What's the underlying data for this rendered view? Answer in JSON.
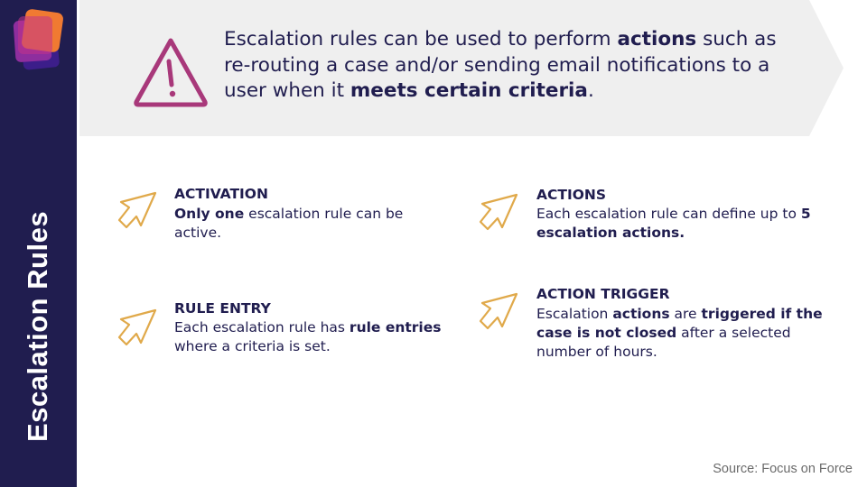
{
  "sidebar": {
    "title": "Escalation Rules"
  },
  "banner": {
    "segments": [
      {
        "text": "Escalation rules can be used to perform ",
        "bold": false
      },
      {
        "text": "actions",
        "bold": true
      },
      {
        "text": " such as re-routing a case and/or sending email notifications to a user when it ",
        "bold": false
      },
      {
        "text": "meets certain criteria",
        "bold": true
      },
      {
        "text": ".",
        "bold": false
      }
    ]
  },
  "items": [
    {
      "title": "ACTIVATION",
      "body": [
        {
          "text": "Only one",
          "bold": true
        },
        {
          "text": " escalation rule can be active.",
          "bold": false
        }
      ]
    },
    {
      "title": "ACTIONS",
      "body": [
        {
          "text": "Each escalation rule can define up to ",
          "bold": false
        },
        {
          "text": "5 escalation actions.",
          "bold": true
        }
      ]
    },
    {
      "title": "RULE ENTRY",
      "body": [
        {
          "text": "Each escalation rule has ",
          "bold": false
        },
        {
          "text": "rule entries",
          "bold": true
        },
        {
          "text": " where a criteria is set.",
          "bold": false
        }
      ]
    },
    {
      "title": "ACTION TRIGGER",
      "body": [
        {
          "text": "Escalation ",
          "bold": false
        },
        {
          "text": "actions",
          "bold": true
        },
        {
          "text": " are ",
          "bold": false
        },
        {
          "text": "triggered if the case is not closed",
          "bold": true
        },
        {
          "text": " after a selected number of hours.",
          "bold": false
        }
      ]
    }
  ],
  "source": "Source: Focus on Force",
  "colors": {
    "sidebar": "#201d4f",
    "banner": "#efefef",
    "warning": "#a8387a",
    "arrow": "#e0a94a",
    "text": "#201d4f"
  },
  "icons": {
    "logo": "stacked-cards-logo",
    "warning": "warning-triangle-icon",
    "item": "arrow-cursor-icon"
  }
}
